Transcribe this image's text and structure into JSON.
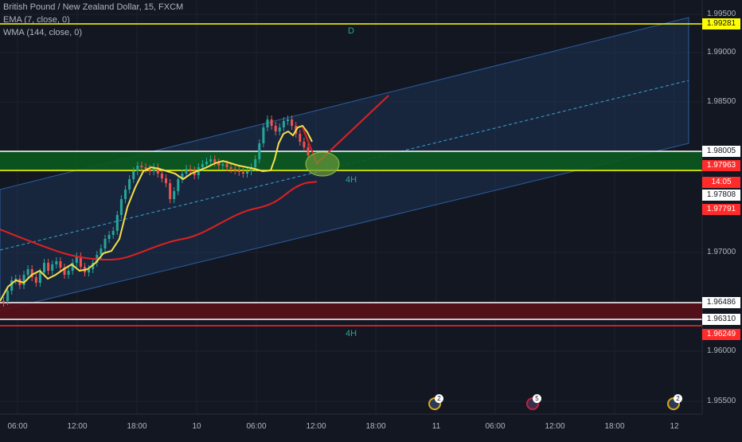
{
  "legend": {
    "title": "British Pound / New Zealand Dollar, 15, FXCM",
    "ema": "EMA (7, close, 0)",
    "wma": "WMA (144, close, 0)"
  },
  "price_axis": [
    "1.99500",
    "1.99000",
    "1.98500",
    "1.97000",
    "1.96000",
    "1.95500"
  ],
  "price_tags": [
    {
      "value": "1.99281",
      "bg": "#ffff00",
      "fg": "#131722"
    },
    {
      "value": "1.98005",
      "bg": "#ffffff",
      "fg": "#131722"
    },
    {
      "value": "1.97963",
      "bg": "#ff2a2a",
      "fg": "#ffffff"
    },
    {
      "value": "14:05",
      "bg": "#ff2a2a",
      "fg": "#ffffff"
    },
    {
      "value": "1.97808",
      "bg": "#ffffff",
      "fg": "#131722"
    },
    {
      "value": "1.97791",
      "bg": "#ff2a2a",
      "fg": "#ffffff"
    },
    {
      "value": "1.96486",
      "bg": "#ffffff",
      "fg": "#131722"
    },
    {
      "value": "1.96310",
      "bg": "#ffffff",
      "fg": "#131722"
    },
    {
      "value": "1.96249",
      "bg": "#ff2a2a",
      "fg": "#ffffff"
    }
  ],
  "time_axis": [
    "06:00",
    "12:00",
    "18:00",
    "10",
    "06:00",
    "12:00",
    "18:00",
    "11",
    "06:00",
    "12:00",
    "18:00",
    "12"
  ],
  "timeframe_labels": [
    "D",
    "4H",
    "4H"
  ],
  "events": [
    {
      "badge": "2",
      "icon": "calendar-event-icon"
    },
    {
      "badge": "5",
      "icon": "uk-flag-event-icon"
    },
    {
      "badge": "2",
      "icon": "calendar-event-icon"
    }
  ],
  "colors": {
    "background": "#131722",
    "bull": "#26a69a",
    "bear": "#ef5350",
    "ema": "#f5e04a",
    "wma": "#e02020",
    "support_zone": "#0b5a1e",
    "resistance_zone": "#5a1018",
    "channel": "#1e3a5f"
  }
}
